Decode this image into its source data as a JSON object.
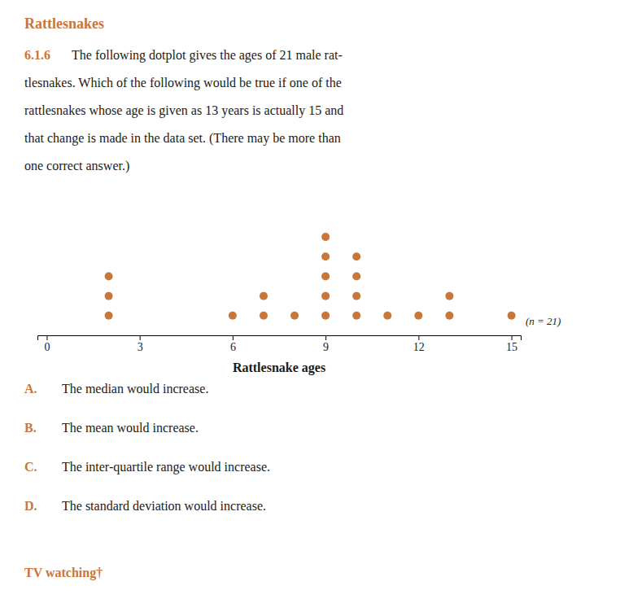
{
  "chart_data": {
    "type": "dotplot",
    "title": "Rattlesnakes",
    "problem_number": "6.1.6",
    "problem_lines": [
      "The following dotplot gives the ages of 21 male rat-",
      "tlesnakes. Which of the following would be true if one of the",
      "rattlesnakes whose age is given as 13 years is actually 15 and",
      "that change is made in the data set. (There may be more than",
      "one correct answer.)"
    ],
    "n_label": "(n = 21)",
    "xlabel": "Rattlesnake ages",
    "x": [
      2,
      6,
      7,
      8,
      9,
      10,
      11,
      12,
      13,
      15
    ],
    "values": [
      3,
      1,
      2,
      1,
      5,
      4,
      1,
      1,
      2,
      1
    ],
    "color": "#C8763A",
    "xlim": [
      -0.3,
      15.3
    ],
    "xticks": [
      0,
      3,
      6,
      9,
      12,
      15
    ],
    "ylim": [
      -0.5,
      6.2
    ],
    "tick_labels": "x",
    "answers": [
      {
        "letter": "A.",
        "text": "The median would increase."
      },
      {
        "letter": "B.",
        "text": "The mean would increase."
      },
      {
        "letter": "C.",
        "text": "The inter-quartile range would increase."
      },
      {
        "letter": "D.",
        "text": "The standard deviation would increase."
      }
    ],
    "footer": "TV watching†"
  }
}
